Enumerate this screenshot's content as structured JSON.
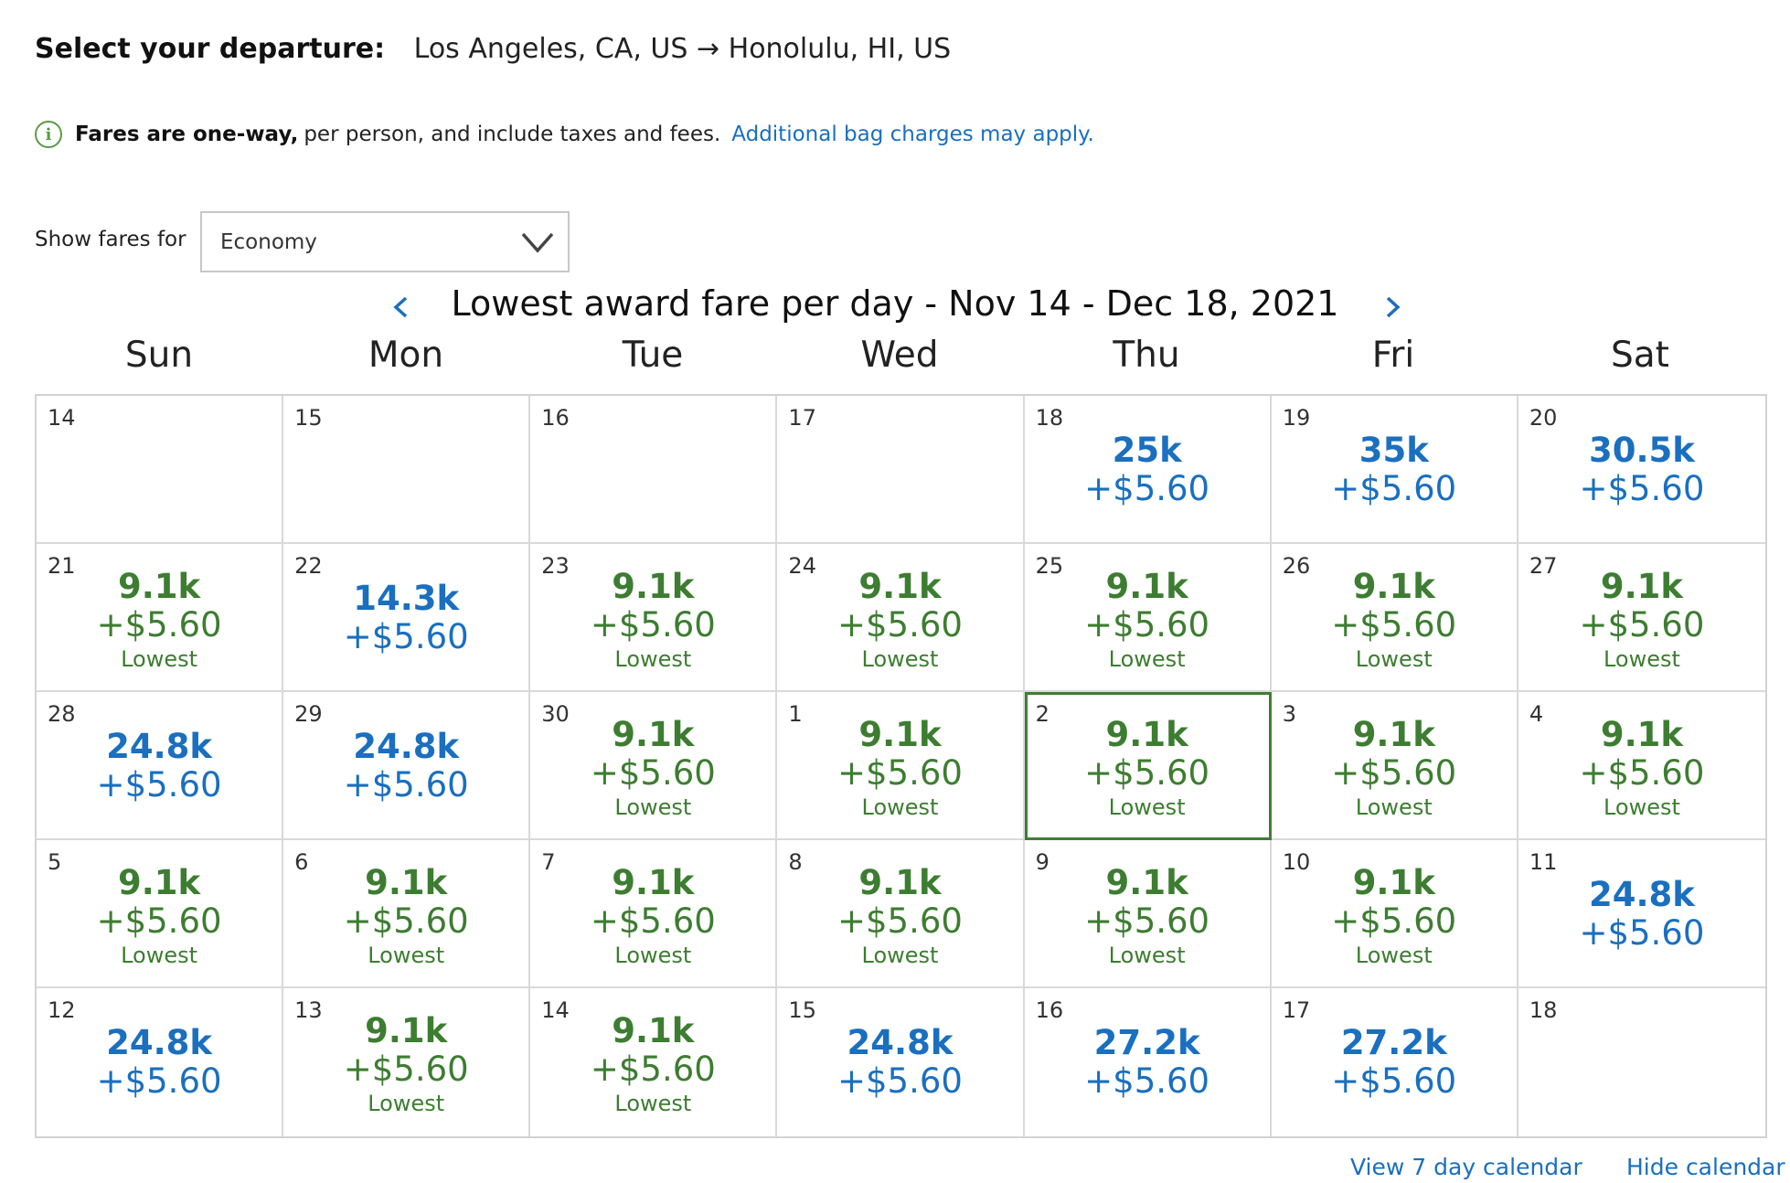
{
  "header": {
    "label": "Select your departure:",
    "route": "Los Angeles, CA, US → Honolulu, HI, US"
  },
  "info": {
    "icon": "info-circle-icon",
    "bold_text": "Fares are one-way,",
    "normal_text": "per person, and include taxes and fees.",
    "link_text": "Additional bag charges may apply."
  },
  "fare_filter": {
    "label": "Show fares for",
    "selected": "Economy"
  },
  "calendar": {
    "title": "Lowest award fare per day - Nov 14 - Dec 18, 2021",
    "days_of_week": [
      "Sun",
      "Mon",
      "Tue",
      "Wed",
      "Thu",
      "Fri",
      "Sat"
    ],
    "colors": {
      "lowest": "#3d7d31",
      "regular": "#1a6fbf",
      "selected_border": "#3f7d34"
    },
    "cells": [
      {
        "day": "14"
      },
      {
        "day": "15"
      },
      {
        "day": "16"
      },
      {
        "day": "17"
      },
      {
        "day": "18",
        "miles": "25k",
        "tax": "+$5.60"
      },
      {
        "day": "19",
        "miles": "35k",
        "tax": "+$5.60"
      },
      {
        "day": "20",
        "miles": "30.5k",
        "tax": "+$5.60"
      },
      {
        "day": "21",
        "miles": "9.1k",
        "tax": "+$5.60",
        "tag": "Lowest"
      },
      {
        "day": "22",
        "miles": "14.3k",
        "tax": "+$5.60"
      },
      {
        "day": "23",
        "miles": "9.1k",
        "tax": "+$5.60",
        "tag": "Lowest"
      },
      {
        "day": "24",
        "miles": "9.1k",
        "tax": "+$5.60",
        "tag": "Lowest"
      },
      {
        "day": "25",
        "miles": "9.1k",
        "tax": "+$5.60",
        "tag": "Lowest"
      },
      {
        "day": "26",
        "miles": "9.1k",
        "tax": "+$5.60",
        "tag": "Lowest"
      },
      {
        "day": "27",
        "miles": "9.1k",
        "tax": "+$5.60",
        "tag": "Lowest"
      },
      {
        "day": "28",
        "miles": "24.8k",
        "tax": "+$5.60"
      },
      {
        "day": "29",
        "miles": "24.8k",
        "tax": "+$5.60"
      },
      {
        "day": "30",
        "miles": "9.1k",
        "tax": "+$5.60",
        "tag": "Lowest"
      },
      {
        "day": "1",
        "miles": "9.1k",
        "tax": "+$5.60",
        "tag": "Lowest"
      },
      {
        "day": "2",
        "miles": "9.1k",
        "tax": "+$5.60",
        "tag": "Lowest",
        "selected": true
      },
      {
        "day": "3",
        "miles": "9.1k",
        "tax": "+$5.60",
        "tag": "Lowest"
      },
      {
        "day": "4",
        "miles": "9.1k",
        "tax": "+$5.60",
        "tag": "Lowest"
      },
      {
        "day": "5",
        "miles": "9.1k",
        "tax": "+$5.60",
        "tag": "Lowest"
      },
      {
        "day": "6",
        "miles": "9.1k",
        "tax": "+$5.60",
        "tag": "Lowest"
      },
      {
        "day": "7",
        "miles": "9.1k",
        "tax": "+$5.60",
        "tag": "Lowest"
      },
      {
        "day": "8",
        "miles": "9.1k",
        "tax": "+$5.60",
        "tag": "Lowest"
      },
      {
        "day": "9",
        "miles": "9.1k",
        "tax": "+$5.60",
        "tag": "Lowest"
      },
      {
        "day": "10",
        "miles": "9.1k",
        "tax": "+$5.60",
        "tag": "Lowest"
      },
      {
        "day": "11",
        "miles": "24.8k",
        "tax": "+$5.60"
      },
      {
        "day": "12",
        "miles": "24.8k",
        "tax": "+$5.60"
      },
      {
        "day": "13",
        "miles": "9.1k",
        "tax": "+$5.60",
        "tag": "Lowest"
      },
      {
        "day": "14",
        "miles": "9.1k",
        "tax": "+$5.60",
        "tag": "Lowest"
      },
      {
        "day": "15",
        "miles": "24.8k",
        "tax": "+$5.60"
      },
      {
        "day": "16",
        "miles": "27.2k",
        "tax": "+$5.60"
      },
      {
        "day": "17",
        "miles": "27.2k",
        "tax": "+$5.60"
      },
      {
        "day": "18"
      }
    ]
  },
  "footer": {
    "view7_label": "View 7 day calendar",
    "hide_label": "Hide calendar"
  }
}
